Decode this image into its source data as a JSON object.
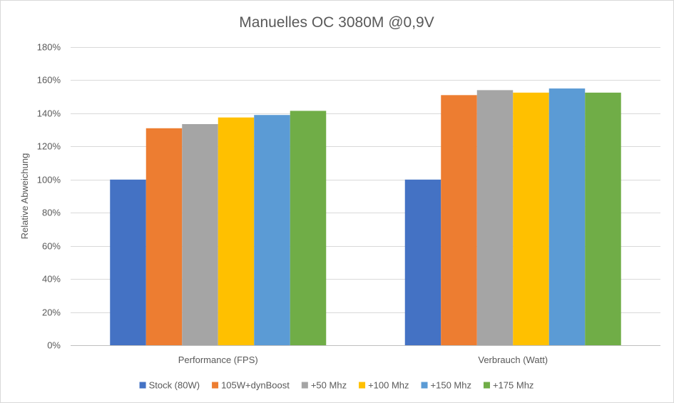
{
  "chart_data": {
    "type": "bar",
    "title": "Manuelles OC 3080M @0,9V",
    "xlabel": "",
    "ylabel": "Relative Abweichung",
    "ylim": [
      0,
      180
    ],
    "yticks": [
      0,
      20,
      40,
      60,
      80,
      100,
      120,
      140,
      160,
      180
    ],
    "ytick_labels": [
      "0%",
      "20%",
      "40%",
      "60%",
      "80%",
      "100%",
      "120%",
      "140%",
      "160%",
      "180%"
    ],
    "categories": [
      "Performance (FPS)",
      "Verbrauch (Watt)"
    ],
    "series": [
      {
        "name": "Stock (80W)",
        "color": "#4472c4",
        "values": [
          100,
          100
        ]
      },
      {
        "name": "105W+dynBoost",
        "color": "#ed7d31",
        "values": [
          131,
          151
        ]
      },
      {
        "name": "+50 Mhz",
        "color": "#a5a5a5",
        "values": [
          133.5,
          154
        ]
      },
      {
        "name": "+100 Mhz",
        "color": "#ffc000",
        "values": [
          137.5,
          152.5
        ]
      },
      {
        "name": "+150 Mhz",
        "color": "#5b9bd5",
        "values": [
          139,
          155
        ]
      },
      {
        "name": "+175 Mhz",
        "color": "#70ad47",
        "values": [
          141.5,
          152.5
        ]
      }
    ],
    "grid": true,
    "legend_position": "bottom"
  }
}
